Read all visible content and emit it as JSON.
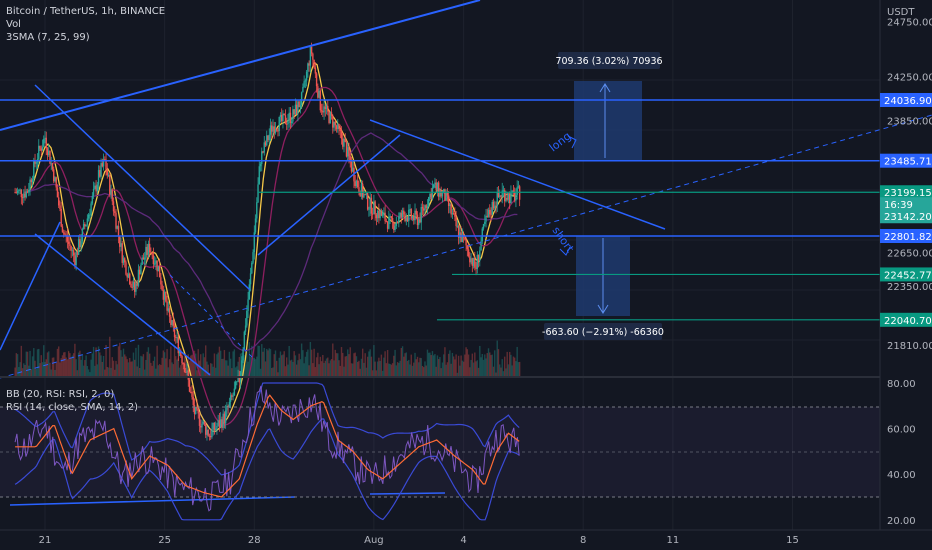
{
  "legend": {
    "title": "Bitcoin / TetherUS, 1h, BINANCE",
    "vol": "Vol",
    "sma": "3SMA (7, 25, 99)",
    "bb": "BB (20, RSI: RSI, 2, 0)",
    "rsi": "RSI (14, close, SMA, 14, 2)"
  },
  "currency": "USDT",
  "colors": {
    "background": "#131722",
    "grid": "#1e222d",
    "trendline": "#2962ff",
    "level_line": "#2962ff",
    "target_line": "#089981",
    "sma_fast": "#f7c948",
    "sma_mid": "#8e1f5f",
    "sma_slow": "#5c2a7a",
    "bb_band": "#3a4ad6",
    "rsi_line": "#7e57c2",
    "rsi_ma": "#ff6b35",
    "candle_up": "#26a69a",
    "candle_down": "#ef5350",
    "long_zone": "#1e3a6e",
    "short_zone": "#1e3a6e",
    "last_price_badge": "#26a69a"
  },
  "price_axis_ticks": [
    "24750.00",
    "24250.00",
    "23850.00",
    "22650.00",
    "22350.00",
    "21810.00"
  ],
  "rsi_axis_ticks": [
    "80.00",
    "60.00",
    "40.00",
    "20.00"
  ],
  "time_axis_ticks": [
    "21",
    "25",
    "28",
    "Aug",
    "4",
    "8",
    "11",
    "15"
  ],
  "price_badges": [
    {
      "label": "24036.90",
      "value": 24036.9,
      "kind": "level"
    },
    {
      "label": "23485.71",
      "value": 23485.71,
      "kind": "level"
    },
    {
      "label": "23199.15",
      "value": 23199.15,
      "kind": "last"
    },
    {
      "label": "16:39",
      "value": null,
      "kind": "countdown"
    },
    {
      "label": "23142.20",
      "value": 23142.2,
      "kind": "sma"
    },
    {
      "label": "22801.82",
      "value": 22801.82,
      "kind": "level"
    },
    {
      "label": "22452.77",
      "value": 22452.77,
      "kind": "target"
    },
    {
      "label": "22040.70",
      "value": 22040.7,
      "kind": "target"
    }
  ],
  "long_measure": "709.36 (3.02%) 70936",
  "short_measure": "-663.60 (−2.91%) -66360",
  "annotations": {
    "long": "long",
    "short": "short"
  },
  "chart_data": [
    {
      "type": "candlestick",
      "title": "Bitcoin / TetherUS, 1h, BINANCE",
      "ylabel": "USDT",
      "ylim": [
        21650,
        24850
      ],
      "x_ticks": [
        "21",
        "25",
        "28",
        "Aug",
        "4",
        "8",
        "11",
        "15"
      ],
      "last_price": 23199.15,
      "horizontal_levels": [
        24036.9,
        23485.71,
        22801.82
      ],
      "targets": [
        22452.77,
        22040.7
      ],
      "long_measure": {
        "from": 23485.71,
        "to": 24195.07,
        "change": 709.36,
        "percent": 3.02
      },
      "short_measure": {
        "from": 22801.82,
        "to": 22138.22,
        "change": -663.6,
        "percent": -2.91
      },
      "close_path": [
        {
          "day": 20.4,
          "price": 23200
        },
        {
          "day": 20.7,
          "price": 23500
        },
        {
          "day": 21.0,
          "price": 23700
        },
        {
          "day": 21.3,
          "price": 23350
        },
        {
          "day": 21.6,
          "price": 22850
        },
        {
          "day": 22.0,
          "price": 22600
        },
        {
          "day": 22.4,
          "price": 22950
        },
        {
          "day": 22.8,
          "price": 23350
        },
        {
          "day": 23.0,
          "price": 23480
        },
        {
          "day": 23.3,
          "price": 23050
        },
        {
          "day": 23.6,
          "price": 22600
        },
        {
          "day": 24.0,
          "price": 22300
        },
        {
          "day": 24.2,
          "price": 22550
        },
        {
          "day": 24.5,
          "price": 22700
        },
        {
          "day": 24.8,
          "price": 22500
        },
        {
          "day": 25.1,
          "price": 22100
        },
        {
          "day": 25.4,
          "price": 21850
        },
        {
          "day": 25.7,
          "price": 21600
        },
        {
          "day": 26.0,
          "price": 21200
        },
        {
          "day": 26.5,
          "price": 21000
        },
        {
          "day": 27.0,
          "price": 21150
        },
        {
          "day": 27.5,
          "price": 21500
        },
        {
          "day": 27.9,
          "price": 22500
        },
        {
          "day": 28.2,
          "price": 23500
        },
        {
          "day": 28.6,
          "price": 23800
        },
        {
          "day": 29.0,
          "price": 23850
        },
        {
          "day": 29.3,
          "price": 23900
        },
        {
          "day": 29.6,
          "price": 24050
        },
        {
          "day": 29.9,
          "price": 24500
        },
        {
          "day": 30.2,
          "price": 24000
        },
        {
          "day": 30.6,
          "price": 23850
        },
        {
          "day": 31.0,
          "price": 23650
        },
        {
          "day": 31.4,
          "price": 23300
        },
        {
          "day": 31.8,
          "price": 23100
        },
        {
          "day": 32.2,
          "price": 23000
        },
        {
          "day": 32.6,
          "price": 22900
        },
        {
          "day": 33.0,
          "price": 23000
        },
        {
          "day": 33.5,
          "price": 22950
        },
        {
          "day": 34.0,
          "price": 23250
        },
        {
          "day": 34.4,
          "price": 23150
        },
        {
          "day": 34.8,
          "price": 22850
        },
        {
          "day": 35.1,
          "price": 22700
        },
        {
          "day": 35.4,
          "price": 22500
        },
        {
          "day": 35.7,
          "price": 22900
        },
        {
          "day": 36.0,
          "price": 23100
        },
        {
          "day": 36.3,
          "price": 23200
        },
        {
          "day": 36.6,
          "price": 23150
        },
        {
          "day": 36.9,
          "price": 23200
        }
      ]
    },
    {
      "type": "line",
      "title": "RSI (14, close, SMA, 14, 2)",
      "ylim": [
        15,
        85
      ],
      "y_ticks": [
        80,
        60,
        40,
        20
      ],
      "bands": [
        70,
        50,
        30
      ],
      "rsi": [
        {
          "day": 20.4,
          "value": 52
        },
        {
          "day": 21.0,
          "value": 62
        },
        {
          "day": 21.6,
          "value": 40
        },
        {
          "day": 22.2,
          "value": 55
        },
        {
          "day": 23.0,
          "value": 60
        },
        {
          "day": 23.6,
          "value": 38
        },
        {
          "day": 24.2,
          "value": 48
        },
        {
          "day": 24.8,
          "value": 44
        },
        {
          "day": 25.4,
          "value": 35
        },
        {
          "day": 26.0,
          "value": 32
        },
        {
          "day": 26.6,
          "value": 30
        },
        {
          "day": 27.2,
          "value": 38
        },
        {
          "day": 27.8,
          "value": 62
        },
        {
          "day": 28.2,
          "value": 75
        },
        {
          "day": 28.6,
          "value": 68
        },
        {
          "day": 29.0,
          "value": 64
        },
        {
          "day": 29.6,
          "value": 70
        },
        {
          "day": 30.0,
          "value": 72
        },
        {
          "day": 30.5,
          "value": 55
        },
        {
          "day": 31.0,
          "value": 50
        },
        {
          "day": 31.5,
          "value": 42
        },
        {
          "day": 32.0,
          "value": 38
        },
        {
          "day": 32.6,
          "value": 45
        },
        {
          "day": 33.2,
          "value": 52
        },
        {
          "day": 33.8,
          "value": 55
        },
        {
          "day": 34.4,
          "value": 48
        },
        {
          "day": 35.0,
          "value": 42
        },
        {
          "day": 35.4,
          "value": 35
        },
        {
          "day": 35.8,
          "value": 50
        },
        {
          "day": 36.2,
          "value": 58
        },
        {
          "day": 36.6,
          "value": 54
        },
        {
          "day": 36.9,
          "value": 55
        }
      ]
    }
  ]
}
